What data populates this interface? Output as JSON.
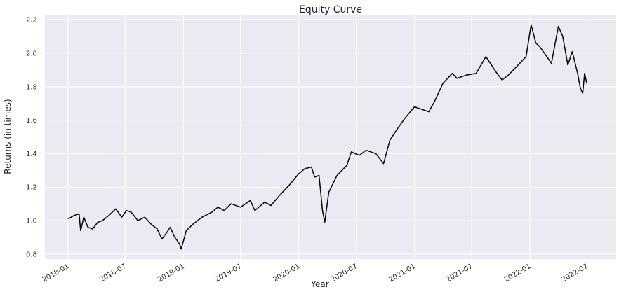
{
  "chart_data": {
    "type": "line",
    "title": "Equity Curve",
    "xlabel": "Year",
    "ylabel": "Returns (in times)",
    "x_ticks": [
      "2018-01",
      "2018-07",
      "2019-01",
      "2019-07",
      "2020-01",
      "2020-07",
      "2021-01",
      "2021-07",
      "2022-01",
      "2022-07"
    ],
    "y_ticks": [
      "0.8",
      "1.0",
      "1.2",
      "1.4",
      "1.6",
      "1.8",
      "2.0",
      "2.2"
    ],
    "xlim": [
      "2017-10-20",
      "2022-10-01"
    ],
    "ylim": [
      0.77,
      2.23
    ],
    "grid": true,
    "line_color": "#000000",
    "background": "#eaeaf2",
    "series": [
      {
        "x": [
          "2018-01-02",
          "2018-01-20",
          "2018-02-05",
          "2018-02-10",
          "2018-02-20",
          "2018-03-05",
          "2018-03-20",
          "2018-04-05",
          "2018-04-20",
          "2018-05-10",
          "2018-06-01",
          "2018-06-20",
          "2018-07-05",
          "2018-07-20",
          "2018-08-10",
          "2018-09-01",
          "2018-09-20",
          "2018-10-10",
          "2018-10-25",
          "2018-11-10",
          "2018-11-20",
          "2018-12-05",
          "2018-12-20",
          "2018-12-25",
          "2019-01-10",
          "2019-02-01",
          "2019-03-01",
          "2019-04-01",
          "2019-04-20",
          "2019-05-10",
          "2019-06-01",
          "2019-07-01",
          "2019-08-01",
          "2019-08-15",
          "2019-09-15",
          "2019-10-05",
          "2019-11-01",
          "2019-12-01",
          "2020-01-01",
          "2020-01-20",
          "2020-02-10",
          "2020-02-20",
          "2020-03-05",
          "2020-03-16",
          "2020-03-23",
          "2020-04-05",
          "2020-05-01",
          "2020-06-01",
          "2020-06-15",
          "2020-07-10",
          "2020-08-01",
          "2020-09-01",
          "2020-09-25",
          "2020-10-15",
          "2020-11-05",
          "2020-12-01",
          "2021-01-01",
          "2021-02-01",
          "2021-02-15",
          "2021-03-05",
          "2021-04-01",
          "2021-05-01",
          "2021-05-15",
          "2021-06-15",
          "2021-07-15",
          "2021-08-15",
          "2021-09-15",
          "2021-10-05",
          "2021-10-25",
          "2021-11-15",
          "2021-12-20",
          "2022-01-05",
          "2022-01-20",
          "2022-02-01",
          "2022-02-20",
          "2022-03-10",
          "2022-04-01",
          "2022-04-15",
          "2022-05-01",
          "2022-05-15",
          "2022-06-01",
          "2022-06-10",
          "2022-06-17",
          "2022-06-23",
          "2022-06-30"
        ],
        "y": [
          1.01,
          1.03,
          1.04,
          0.94,
          1.02,
          0.96,
          0.95,
          0.99,
          1.0,
          1.03,
          1.07,
          1.02,
          1.06,
          1.05,
          1.0,
          1.02,
          0.98,
          0.95,
          0.89,
          0.93,
          0.96,
          0.9,
          0.86,
          0.83,
          0.94,
          0.98,
          1.02,
          1.05,
          1.08,
          1.06,
          1.1,
          1.08,
          1.12,
          1.06,
          1.11,
          1.09,
          1.15,
          1.21,
          1.28,
          1.31,
          1.32,
          1.26,
          1.27,
          1.06,
          0.99,
          1.17,
          1.27,
          1.33,
          1.41,
          1.39,
          1.42,
          1.4,
          1.34,
          1.48,
          1.54,
          1.61,
          1.68,
          1.66,
          1.65,
          1.71,
          1.82,
          1.88,
          1.85,
          1.87,
          1.88,
          1.98,
          1.89,
          1.84,
          1.87,
          1.91,
          1.98,
          2.17,
          2.06,
          2.04,
          1.99,
          1.94,
          2.16,
          2.1,
          1.93,
          2.01,
          1.88,
          1.79,
          1.76,
          1.88,
          1.82
        ]
      }
    ]
  }
}
